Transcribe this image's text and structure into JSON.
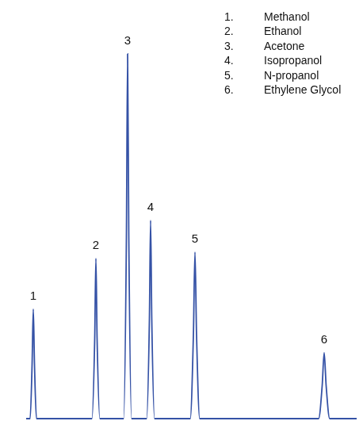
{
  "chart_data": {
    "type": "line",
    "x": [
      3,
      8,
      10.5,
      12,
      13.5,
      16,
      86,
      89.5,
      91,
      92.5,
      96,
      126,
      129.5,
      131,
      132.5,
      136,
      155,
      158.5,
      160,
      161.5,
      165,
      210,
      214,
      216,
      218,
      222,
      372,
      376.5,
      379,
      381.5,
      386,
      420
    ],
    "values": [
      0,
      0,
      69,
      138,
      69,
      0,
      0,
      101,
      202,
      101,
      0,
      0,
      230,
      460,
      230,
      0,
      0,
      125,
      250,
      125,
      0,
      0,
      105,
      210,
      105,
      0,
      0,
      41.5,
      83,
      41.5,
      0,
      0
    ],
    "color": "#3552a6",
    "xlim": [
      0,
      420
    ],
    "ylim": [
      0,
      500
    ],
    "grid": false,
    "tick_labels": false,
    "annotations": [
      {
        "text": "1",
        "x": 12,
        "y": 138
      },
      {
        "text": "2",
        "x": 91,
        "y": 202
      },
      {
        "text": "3",
        "x": 131,
        "y": 460
      },
      {
        "text": "4",
        "x": 160,
        "y": 250
      },
      {
        "text": "5",
        "x": 216,
        "y": 210
      },
      {
        "text": "6",
        "x": 379,
        "y": 83
      }
    ],
    "peak_key": [
      {
        "number": "1.",
        "name": "Methanol"
      },
      {
        "number": "2.",
        "name": "Ethanol"
      },
      {
        "number": "3.",
        "name": "Acetone"
      },
      {
        "number": "4.",
        "name": "Isopropanol"
      },
      {
        "number": "5.",
        "name": "N-propanol"
      },
      {
        "number": "6.",
        "name": "Ethylene Glycol"
      }
    ]
  }
}
